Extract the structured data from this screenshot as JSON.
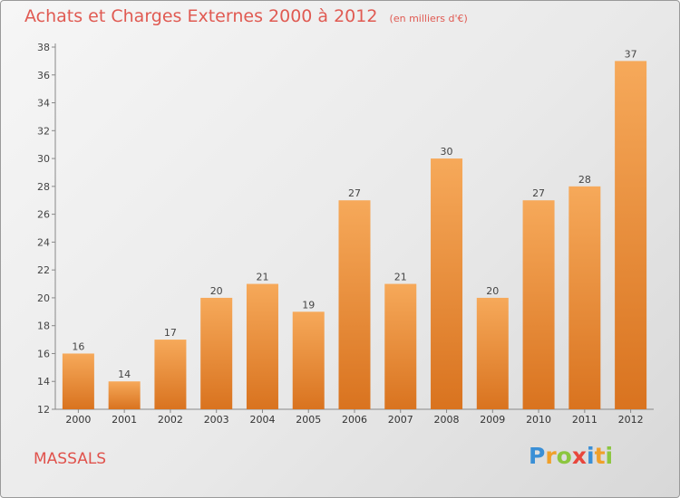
{
  "title": "Achats et Charges Externes 2000 à 2012",
  "unit_note": "(en milliers d'€)",
  "commune": "MASSALS",
  "logo": {
    "text": "Proxiti",
    "letters": [
      {
        "ch": "P",
        "color": "#3a8fd6"
      },
      {
        "ch": "r",
        "color": "#f0a02a"
      },
      {
        "ch": "o",
        "color": "#8cc63f"
      },
      {
        "ch": "x",
        "color": "#e8463c"
      },
      {
        "ch": "i",
        "color": "#3a8fd6"
      },
      {
        "ch": "t",
        "color": "#f0a02a"
      },
      {
        "ch": "i",
        "color": "#8cc63f"
      }
    ]
  },
  "colors": {
    "bar_top": "#f6a95a",
    "bar_bottom": "#d9731f",
    "text": "#e05a52"
  },
  "chart_data": {
    "type": "bar",
    "categories": [
      "2000",
      "2001",
      "2002",
      "2003",
      "2004",
      "2005",
      "2006",
      "2007",
      "2008",
      "2009",
      "2010",
      "2011",
      "2012"
    ],
    "values": [
      16,
      14,
      17,
      20,
      21,
      19,
      27,
      21,
      30,
      20,
      27,
      28,
      37
    ],
    "ylim": [
      12,
      38
    ],
    "yticks": [
      12,
      14,
      16,
      18,
      20,
      22,
      24,
      26,
      28,
      30,
      32,
      34,
      36,
      38
    ],
    "grid": false,
    "data_labels": true
  }
}
